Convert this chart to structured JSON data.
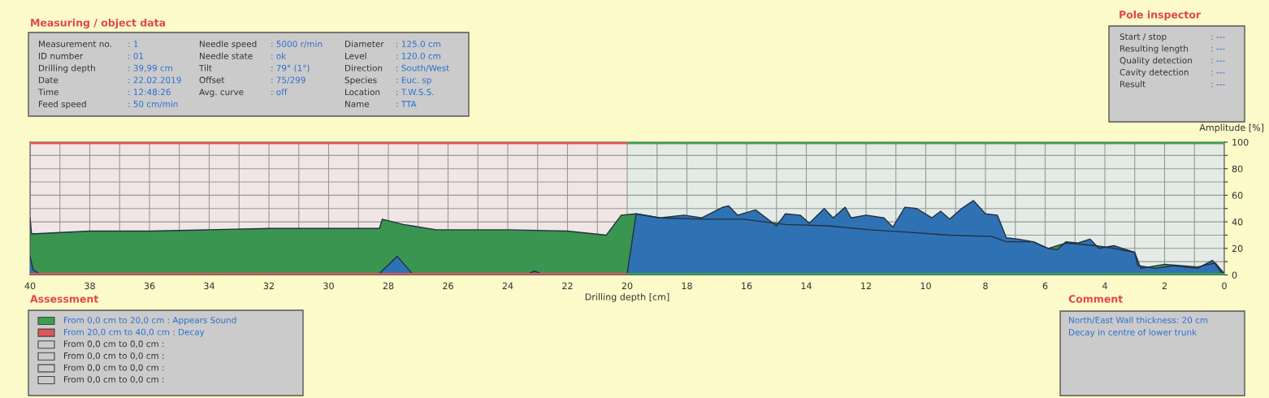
{
  "chart_data": {
    "type": "area",
    "xlabel": "Drilling depth [cm]",
    "ylabel": "Amplitude [%]",
    "xlim": [
      40,
      0
    ],
    "ylim": [
      0,
      100
    ],
    "xticks": [
      40,
      {
        "value": 39,
        "label": null
      },
      38,
      {
        "value": 37,
        "label": null
      },
      36,
      {
        "value": 35,
        "label": null
      },
      34,
      {
        "value": 33,
        "label": null
      },
      32,
      {
        "value": 31,
        "label": null
      },
      30,
      {
        "value": 29,
        "label": null
      },
      28,
      {
        "value": 27,
        "label": null
      },
      26,
      {
        "value": 25,
        "label": null
      },
      24,
      {
        "value": 23,
        "label": null
      },
      22,
      {
        "value": 21,
        "label": null
      },
      20,
      {
        "value": 19,
        "label": null
      },
      18,
      {
        "value": 17,
        "label": null
      },
      16,
      {
        "value": 15,
        "label": null
      },
      14,
      {
        "value": 13,
        "label": null
      },
      12,
      {
        "value": 11,
        "label": null
      },
      10,
      {
        "value": 9,
        "label": null
      },
      8,
      {
        "value": 7,
        "label": null
      },
      6,
      {
        "value": 5,
        "label": null
      },
      4,
      {
        "value": 3,
        "label": null
      },
      2,
      {
        "value": 1,
        "label": null
      },
      0
    ],
    "yticks": [
      0,
      {
        "value": 10,
        "label": null
      },
      20,
      {
        "value": 30,
        "label": null
      },
      40,
      {
        "value": 50,
        "label": null
      },
      60,
      {
        "value": 70,
        "label": null
      },
      80,
      {
        "value": 90,
        "label": null
      },
      100
    ],
    "grid": true,
    "legend": "bottom left",
    "series": [
      {
        "color": "#3a9550",
        "x": [
          40,
          39.95,
          39.8,
          38,
          36,
          34,
          32,
          30,
          28.3,
          28.2,
          27.5,
          26.4,
          24,
          22,
          20.7,
          20.2,
          19.7,
          18.9,
          17.5,
          16.1,
          14.7,
          13.3,
          11.9,
          10.5,
          9.2,
          7.8,
          7.3,
          6.4,
          5.9,
          5.3,
          4.3,
          3.7,
          3.0,
          2.8,
          2.0,
          0.9,
          0.3,
          0
        ],
        "values": [
          43,
          31,
          31,
          33,
          33,
          34,
          35,
          35,
          35,
          42,
          38,
          34,
          34,
          33,
          30,
          45,
          46,
          43,
          42,
          42,
          38,
          37,
          34,
          32,
          30,
          29,
          25,
          25,
          20,
          24,
          22,
          20,
          17,
          5,
          8,
          6,
          9,
          1
        ]
      },
      {
        "color": "#2f72b4",
        "x": [
          40,
          39.9,
          39.7,
          38,
          30,
          28.3,
          27.7,
          27.2,
          23.3,
          23.1,
          22.9,
          20.3,
          20.0,
          19.7,
          18.9,
          18.1,
          17.5,
          16.8,
          16.6,
          16.3,
          15.7,
          15.0,
          14.7,
          14.2,
          13.9,
          13.4,
          13.1,
          12.7,
          12.5,
          12.0,
          11.4,
          11.1,
          10.7,
          10.3,
          9.8,
          9.5,
          9.2,
          8.8,
          8.4,
          8.0,
          7.6,
          7.3,
          6.9,
          6.4,
          5.9,
          5.6,
          5.3,
          4.9,
          4.5,
          4.2,
          3.7,
          3.0,
          2.9,
          2.3,
          1.7,
          0.9,
          0.4,
          0.1,
          0
        ],
        "values": [
          14,
          4,
          1,
          1,
          1,
          1,
          14,
          1,
          1,
          3,
          1,
          1,
          1,
          46,
          43,
          45,
          43,
          51,
          52,
          45,
          49,
          37,
          46,
          45,
          39,
          50,
          43,
          51,
          43,
          45,
          43,
          36,
          51,
          50,
          43,
          48,
          42,
          50,
          56,
          46,
          45,
          28,
          27,
          25,
          20,
          19,
          25,
          24,
          27,
          20,
          22,
          17,
          7,
          5,
          7,
          5,
          11,
          2,
          1
        ]
      }
    ],
    "bands": [
      {
        "axis": "x",
        "from": 20,
        "to": 0,
        "color": "#3aa050",
        "label": "From 0,0 cm to 20,0 cm : Appears Sound"
      },
      {
        "axis": "x",
        "from": 40,
        "to": 20,
        "color": "#e05555",
        "label": "From 20,0 cm to 40,0 cm : Decay"
      }
    ],
    "annotations": [
      "Measuring / object data",
      "Measurement no.",
      ": 1",
      "ID number",
      ": 01",
      "Drilling depth",
      ": 39,99 cm",
      "Date",
      ": 22.02.2019",
      "Time",
      ": 12:48:26",
      "Feed speed",
      ": 50 cm/min",
      "Needle speed",
      ": 5000 r/min",
      "Needle state",
      ": ok",
      "Tilt",
      ": 79° (1°)",
      "Offset",
      ": 75/299",
      "Avg. curve",
      ": off",
      "Diameter",
      ": 125.0 cm",
      "Level",
      ": 120.0 cm",
      "Direction",
      ": South/West",
      "Species",
      ": Euc. sp",
      "Location",
      ": T.W.S.S.",
      "Name",
      ": TTA",
      "Pole inspector",
      "Start / stop",
      ": ---",
      "Resulting length",
      ": ---",
      "Quality detection",
      ": ---",
      "Cavity detection",
      ": ---",
      "Result",
      ": ---",
      "Assessment",
      "From 0,0 cm to 0,0 cm :",
      "From 0,0 cm to 0,0 cm :",
      "From 0,0 cm to 0,0 cm :",
      "From 0,0 cm to 0,0 cm :",
      "Comment",
      "North/East Wall thickness: 20 cm",
      "Decay in centre of lower trunk"
    ]
  }
}
